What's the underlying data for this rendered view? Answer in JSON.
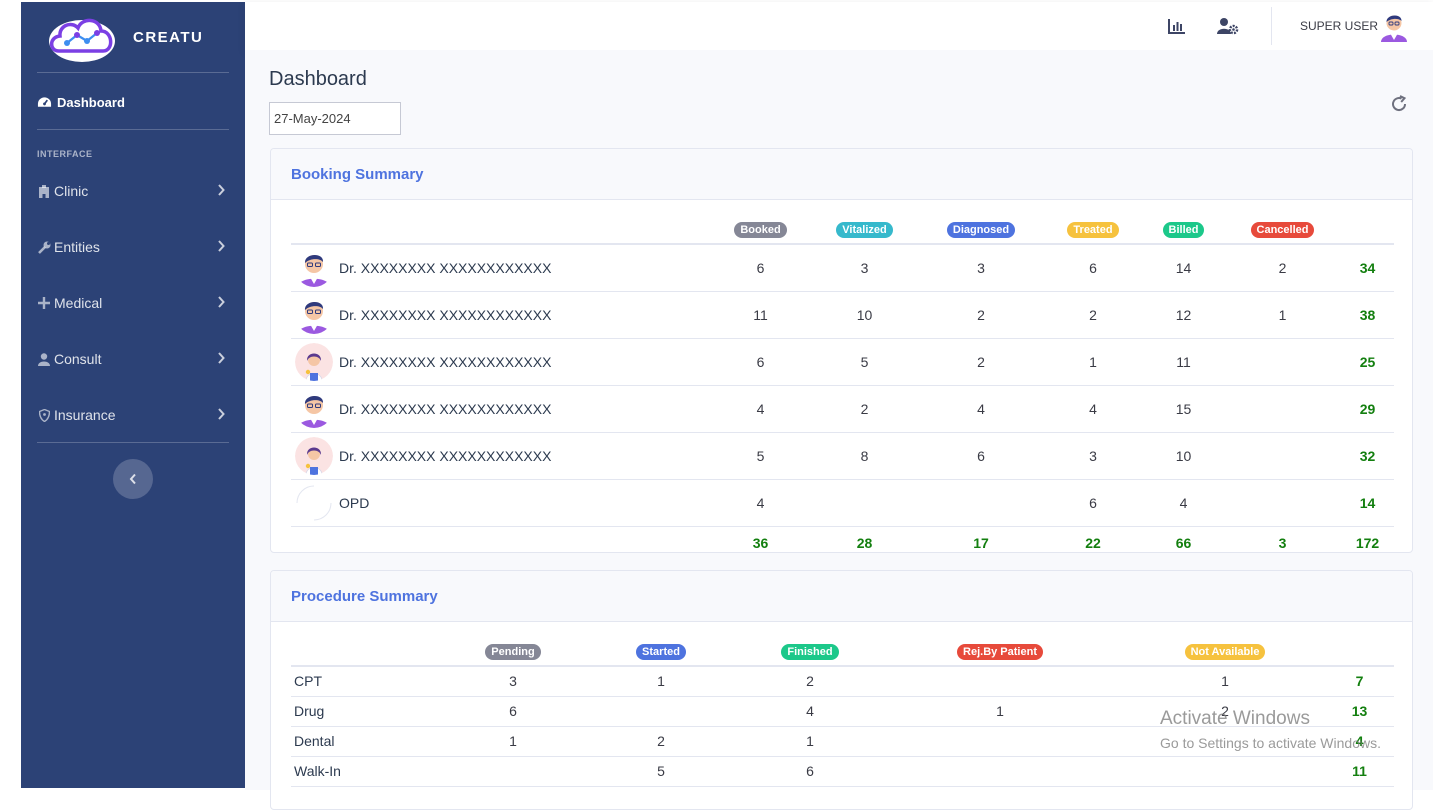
{
  "brand": {
    "name": "CREATU"
  },
  "sidebar": {
    "dashboard_label": "Dashboard",
    "heading": "INTERFACE",
    "items": [
      {
        "label": "Clinic",
        "icon": "clinic-icon"
      },
      {
        "label": "Entities",
        "icon": "wrench-icon"
      },
      {
        "label": "Medical",
        "icon": "plus-icon"
      },
      {
        "label": "Consult",
        "icon": "user-icon"
      },
      {
        "label": "Insurance",
        "icon": "shield-icon"
      }
    ]
  },
  "topbar": {
    "username": "SUPER USER"
  },
  "page": {
    "title": "Dashboard",
    "date": "27-May-2024"
  },
  "booking": {
    "title": "Booking Summary",
    "columns": [
      {
        "label": "Booked",
        "color": "#858796"
      },
      {
        "label": "Vitalized",
        "color": "#36b9cc"
      },
      {
        "label": "Diagnosed",
        "color": "#4e73df"
      },
      {
        "label": "Treated",
        "color": "#f6c23e"
      },
      {
        "label": "Billed",
        "color": "#1cc88a"
      },
      {
        "label": "Cancelled",
        "color": "#e74a3b"
      }
    ],
    "rows": [
      {
        "name": "Dr. XXXXXXXX XXXXXXXXXXXX",
        "avatar": "male",
        "values": [
          "6",
          "3",
          "3",
          "6",
          "14",
          "2"
        ],
        "total": "34"
      },
      {
        "name": "Dr. XXXXXXXX XXXXXXXXXXXX",
        "avatar": "male",
        "values": [
          "11",
          "10",
          "2",
          "2",
          "12",
          "1"
        ],
        "total": "38"
      },
      {
        "name": "Dr. XXXXXXXX XXXXXXXXXXXX",
        "avatar": "female",
        "values": [
          "6",
          "5",
          "2",
          "1",
          "11",
          ""
        ],
        "total": "25"
      },
      {
        "name": "Dr. XXXXXXXX XXXXXXXXXXXX",
        "avatar": "male",
        "values": [
          "4",
          "2",
          "4",
          "4",
          "15",
          ""
        ],
        "total": "29"
      },
      {
        "name": "Dr. XXXXXXXX XXXXXXXXXXXX",
        "avatar": "female",
        "values": [
          "5",
          "8",
          "6",
          "3",
          "10",
          ""
        ],
        "total": "32"
      },
      {
        "name": "OPD",
        "avatar": "blank",
        "values": [
          "4",
          "",
          "",
          "6",
          "4",
          ""
        ],
        "total": "14"
      }
    ],
    "totals": [
      "36",
      "28",
      "17",
      "22",
      "66",
      "3"
    ],
    "grand_total": "172"
  },
  "procedure": {
    "title": "Procedure Summary",
    "columns": [
      {
        "label": "Pending",
        "color": "#858796"
      },
      {
        "label": "Started",
        "color": "#4e73df"
      },
      {
        "label": "Finished",
        "color": "#1cc88a"
      },
      {
        "label": "Rej.By Patient",
        "color": "#e74a3b"
      },
      {
        "label": "Not Available",
        "color": "#f6c23e"
      }
    ],
    "rows": [
      {
        "name": "CPT",
        "values": [
          "3",
          "1",
          "2",
          "",
          "1"
        ],
        "total": "7"
      },
      {
        "name": "Drug",
        "values": [
          "6",
          "",
          "4",
          "1",
          "2"
        ],
        "total": "13"
      },
      {
        "name": "Dental",
        "values": [
          "1",
          "2",
          "1",
          "",
          ""
        ],
        "total": "4"
      },
      {
        "name": "Walk-In",
        "values": [
          "",
          "5",
          "6",
          "",
          ""
        ],
        "total": "11"
      }
    ]
  },
  "watermark": {
    "title": "Activate Windows",
    "subtitle": "Go to Settings to activate Windows."
  }
}
